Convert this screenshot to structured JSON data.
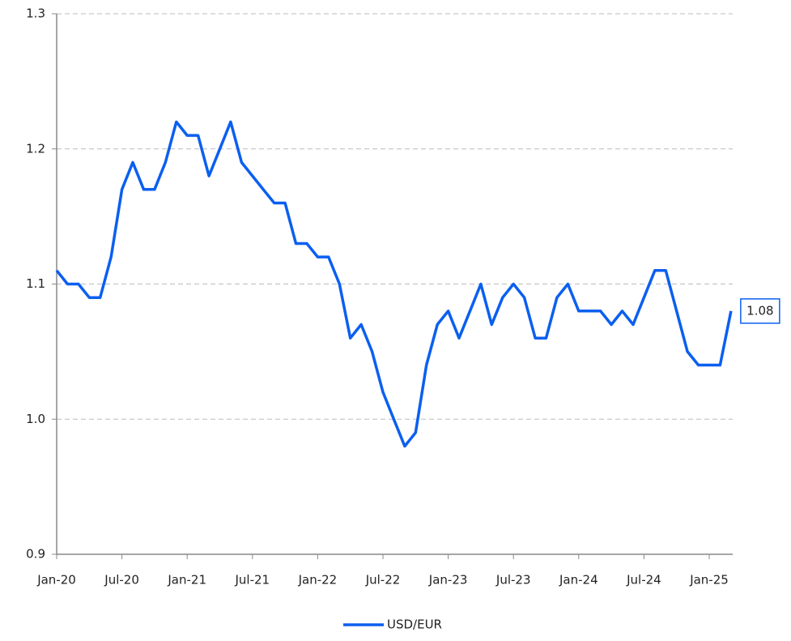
{
  "chart_data": {
    "type": "line",
    "categories": [
      "Jan-20",
      null,
      null,
      null,
      null,
      null,
      "Jul-20",
      null,
      null,
      null,
      null,
      null,
      "Jan-21",
      null,
      null,
      null,
      null,
      null,
      "Jul-21",
      null,
      null,
      null,
      null,
      null,
      "Jan-22",
      null,
      null,
      null,
      null,
      null,
      "Jul-22",
      null,
      null,
      null,
      null,
      null,
      "Jan-23",
      null,
      null,
      null,
      null,
      null,
      "Jul-23",
      null,
      null,
      null,
      null,
      null,
      "Jan-24",
      null,
      null,
      null,
      null,
      null,
      "Jul-24",
      null,
      null,
      null,
      null,
      null,
      "Jan-25",
      null,
      null
    ],
    "series": [
      {
        "name": "USD/EUR",
        "color": "#0b5ff0",
        "values": [
          1.11,
          1.1,
          1.1,
          1.09,
          1.09,
          1.12,
          1.17,
          1.19,
          1.17,
          1.17,
          1.19,
          1.22,
          1.21,
          1.21,
          1.18,
          1.2,
          1.22,
          1.19,
          1.18,
          1.17,
          1.16,
          1.16,
          1.13,
          1.13,
          1.12,
          1.12,
          1.1,
          1.06,
          1.07,
          1.05,
          1.02,
          1.0,
          0.98,
          0.99,
          1.04,
          1.07,
          1.08,
          1.06,
          1.08,
          1.1,
          1.07,
          1.09,
          1.1,
          1.09,
          1.06,
          1.06,
          1.09,
          1.1,
          1.08,
          1.08,
          1.08,
          1.07,
          1.08,
          1.07,
          1.09,
          1.11,
          1.11,
          1.08,
          1.05,
          1.04,
          1.04,
          1.04,
          1.08
        ]
      }
    ],
    "ylim": [
      0.9,
      1.3
    ],
    "yticks": [
      {
        "value": 0.9,
        "label": "0.9"
      },
      {
        "value": 1,
        "label": "1.0"
      },
      1.1,
      1.2,
      1.3
    ],
    "grid": true,
    "legend": "bottom"
  }
}
